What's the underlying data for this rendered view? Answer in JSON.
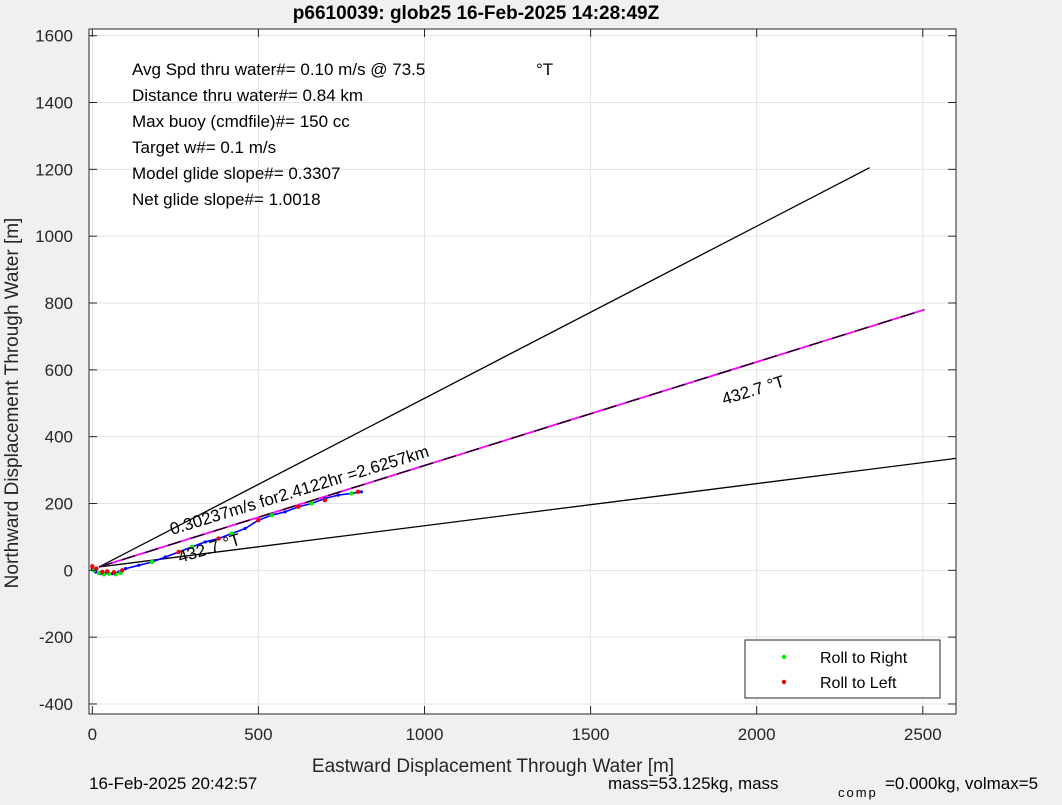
{
  "chart_data": {
    "type": "line",
    "title": "p6610039: glob25 16-Feb-2025 14:28:49Z",
    "xlabel": "Eastward Displacement Through Water [m]",
    "ylabel": "Northward Displacement Through Water [m]",
    "xlim": [
      -10,
      2600
    ],
    "ylim": [
      -430,
      1620
    ],
    "xticks": [
      0,
      500,
      1000,
      1500,
      2000,
      2500
    ],
    "yticks": [
      -400,
      -200,
      0,
      200,
      400,
      600,
      800,
      1000,
      1200,
      1400,
      1600
    ],
    "grid": true,
    "info_lines": [
      {
        "label": "Avg Spd thru water#=  0.10 m/s @  73.5",
        "unit": "°T"
      },
      {
        "label": "Distance thru water#=  0.84 km",
        "unit": ""
      },
      {
        "label": "Max buoy (cmdfile)#= 150 cc",
        "unit": ""
      },
      {
        "label": "Target w#= 0.1 m/s",
        "unit": ""
      },
      {
        "label": "Model glide slope#= 0.3307",
        "unit": ""
      },
      {
        "label": "Net glide slope#= 1.0018",
        "unit": ""
      }
    ],
    "reference_lines": [
      {
        "name": "upper",
        "x": [
          20,
          2340
        ],
        "y": [
          10,
          1205
        ],
        "color": "#000000"
      },
      {
        "name": "lower",
        "x": [
          20,
          2600
        ],
        "y": [
          10,
          335
        ],
        "color": "#000000"
      },
      {
        "name": "heading-magenta",
        "x": [
          20,
          2505
        ],
        "y": [
          10,
          780
        ],
        "color": "#ff00ff"
      },
      {
        "name": "heading-dashed",
        "x": [
          20,
          2505
        ],
        "y": [
          10,
          780
        ],
        "color": "#000000"
      }
    ],
    "track": {
      "color": "#0000ff",
      "x": [
        0,
        10,
        25,
        40,
        60,
        80,
        100,
        140,
        180,
        220,
        260,
        300,
        340,
        380,
        420,
        460,
        500,
        540,
        580,
        620,
        660,
        700,
        740,
        780,
        810
      ],
      "y": [
        5,
        -5,
        -10,
        -8,
        -10,
        -5,
        5,
        15,
        25,
        40,
        55,
        70,
        85,
        95,
        110,
        125,
        150,
        165,
        175,
        190,
        200,
        215,
        225,
        230,
        235
      ]
    },
    "roll_right": {
      "name": "Roll to Right",
      "color": "#00ee00",
      "x": [
        5,
        20,
        35,
        50,
        70,
        85,
        180,
        300,
        420,
        540,
        660,
        780
      ],
      "y": [
        0,
        -8,
        -12,
        -10,
        -12,
        -8,
        25,
        70,
        110,
        165,
        200,
        230
      ]
    },
    "roll_left": {
      "name": "Roll to Left",
      "color": "#ee0000",
      "x": [
        0,
        12,
        30,
        45,
        65,
        90,
        260,
        380,
        500,
        620,
        700,
        800
      ],
      "y": [
        12,
        5,
        -5,
        -3,
        -6,
        0,
        55,
        95,
        150,
        190,
        210,
        235
      ]
    },
    "labels": {
      "speed_label": "0.30237m/s for2.4122hr =2.6257km",
      "heading_upper": "432.7  °T",
      "heading_lower": "432.7  °T"
    },
    "legend": {
      "placement": "bottom-right",
      "entries": [
        "Roll to Right",
        "Roll to Left"
      ]
    }
  },
  "footer": {
    "date": "16-Feb-2025 20:42:57",
    "mass_text": "mass=53.125kg, mass",
    "mass_sub": "comp",
    "mass_rest": "=0.000kg, volmax=5"
  }
}
